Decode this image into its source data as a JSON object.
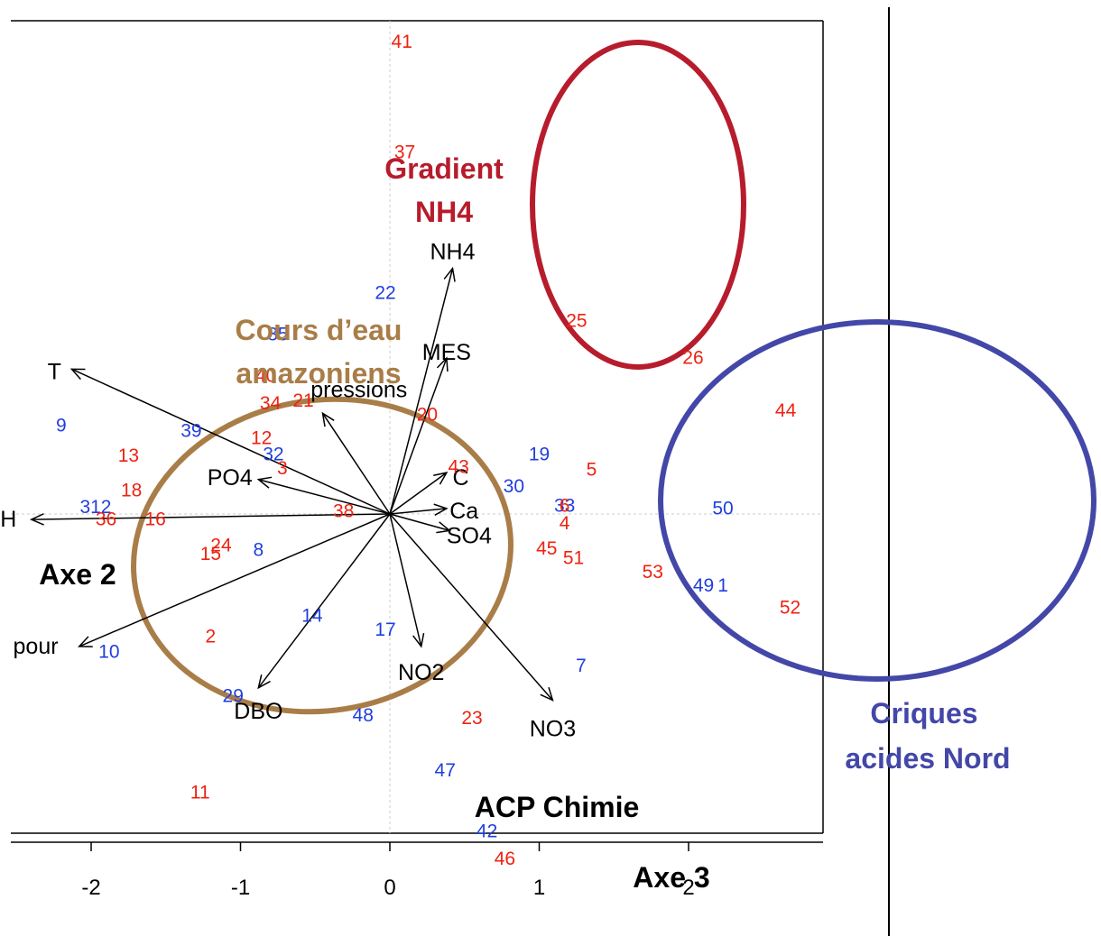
{
  "chart_data": {
    "type": "scatter",
    "title": "ACP Chimie",
    "xlabel": "Axe 3",
    "ylabel": "Axe 2",
    "xlim": [
      -2.55,
      2.9
    ],
    "ylim": [
      -2.15,
      3.6
    ],
    "x_ticks": [
      {
        "value": -2,
        "label": "-2"
      },
      {
        "value": -1,
        "label": "-1"
      },
      {
        "value": 0,
        "label": "0"
      },
      {
        "value": 1,
        "label": "1"
      },
      {
        "value": 2,
        "label": "2"
      }
    ],
    "grid": "dashed reference lines at x = 0 and y = 0",
    "colors": {
      "red": "#ee2211",
      "blue": "#1f3fdd",
      "arrow": "#000000"
    },
    "sites": [
      {
        "label": "41",
        "x": 0.08,
        "y": 3.42,
        "color": "red"
      },
      {
        "label": "37",
        "x": 0.1,
        "y": 2.62,
        "color": "red"
      },
      {
        "label": "22",
        "x": -0.03,
        "y": 1.6,
        "color": "blue"
      },
      {
        "label": "35",
        "x": -0.75,
        "y": 1.3,
        "color": "blue"
      },
      {
        "label": "25",
        "x": 1.25,
        "y": 1.4,
        "color": "red"
      },
      {
        "label": "26",
        "x": 2.03,
        "y": 1.13,
        "color": "red"
      },
      {
        "label": "40",
        "x": -0.83,
        "y": 1.0,
        "color": "red"
      },
      {
        "label": "34",
        "x": -0.8,
        "y": 0.8,
        "color": "red"
      },
      {
        "label": "21",
        "x": -0.58,
        "y": 0.82,
        "color": "red"
      },
      {
        "label": "20",
        "x": 0.25,
        "y": 0.72,
        "color": "red"
      },
      {
        "label": "44",
        "x": 2.65,
        "y": 0.75,
        "color": "red"
      },
      {
        "label": "9",
        "x": -2.2,
        "y": 0.64,
        "color": "blue"
      },
      {
        "label": "39",
        "x": -1.33,
        "y": 0.6,
        "color": "blue"
      },
      {
        "label": "12",
        "x": -0.86,
        "y": 0.55,
        "color": "red"
      },
      {
        "label": "13",
        "x": -1.75,
        "y": 0.42,
        "color": "red"
      },
      {
        "label": "32",
        "x": -0.78,
        "y": 0.43,
        "color": "blue"
      },
      {
        "label": "3",
        "x": -0.72,
        "y": 0.33,
        "color": "red"
      },
      {
        "label": "19",
        "x": 1.0,
        "y": 0.43,
        "color": "blue"
      },
      {
        "label": "5",
        "x": 1.35,
        "y": 0.32,
        "color": "red"
      },
      {
        "label": "43",
        "x": 0.46,
        "y": 0.34,
        "color": "red"
      },
      {
        "label": "30",
        "x": 0.83,
        "y": 0.2,
        "color": "blue"
      },
      {
        "label": "18",
        "x": -1.73,
        "y": 0.17,
        "color": "red"
      },
      {
        "label": "312",
        "x": -1.97,
        "y": 0.05,
        "color": "blue"
      },
      {
        "label": "36",
        "x": -1.9,
        "y": -0.04,
        "color": "red"
      },
      {
        "label": "16",
        "x": -1.57,
        "y": -0.04,
        "color": "red"
      },
      {
        "label": "38",
        "x": -0.31,
        "y": 0.02,
        "color": "red"
      },
      {
        "label": "33",
        "x": 1.17,
        "y": 0.06,
        "color": "blue"
      },
      {
        "label": "6",
        "x": 1.17,
        "y": 0.06,
        "color": "red"
      },
      {
        "label": "4",
        "x": 1.17,
        "y": -0.07,
        "color": "red"
      },
      {
        "label": "50",
        "x": 2.23,
        "y": 0.04,
        "color": "blue"
      },
      {
        "label": "24",
        "x": -1.13,
        "y": -0.23,
        "color": "red"
      },
      {
        "label": "15",
        "x": -1.2,
        "y": -0.29,
        "color": "red"
      },
      {
        "label": "8",
        "x": -0.88,
        "y": -0.26,
        "color": "blue"
      },
      {
        "label": "45",
        "x": 1.05,
        "y": -0.25,
        "color": "red"
      },
      {
        "label": "51",
        "x": 1.23,
        "y": -0.32,
        "color": "red"
      },
      {
        "label": "53",
        "x": 1.76,
        "y": -0.42,
        "color": "red"
      },
      {
        "label": "49",
        "x": 2.1,
        "y": -0.52,
        "color": "blue"
      },
      {
        "label": "1",
        "x": 2.23,
        "y": -0.52,
        "color": "blue"
      },
      {
        "label": "52",
        "x": 2.68,
        "y": -0.68,
        "color": "red"
      },
      {
        "label": "14",
        "x": -0.52,
        "y": -0.74,
        "color": "blue"
      },
      {
        "label": "17",
        "x": -0.03,
        "y": -0.84,
        "color": "blue"
      },
      {
        "label": "2",
        "x": -1.2,
        "y": -0.89,
        "color": "red"
      },
      {
        "label": "10",
        "x": -1.88,
        "y": -1.0,
        "color": "blue"
      },
      {
        "label": "7",
        "x": 1.28,
        "y": -1.1,
        "color": "blue"
      },
      {
        "label": "29",
        "x": -1.05,
        "y": -1.32,
        "color": "blue"
      },
      {
        "label": "48",
        "x": -0.18,
        "y": -1.46,
        "color": "blue"
      },
      {
        "label": "23",
        "x": 0.55,
        "y": -1.48,
        "color": "red"
      },
      {
        "label": "47",
        "x": 0.37,
        "y": -1.86,
        "color": "blue"
      },
      {
        "label": "11",
        "x": -1.27,
        "y": -2.02,
        "color": "red"
      },
      {
        "label": "42",
        "x": 0.65,
        "y": -2.3,
        "color": "blue"
      },
      {
        "label": "46",
        "x": 0.77,
        "y": -2.5,
        "color": "red"
      }
    ],
    "variables": [
      {
        "name": "NH4",
        "x": 0.42,
        "y": 1.78,
        "lx": 0.42,
        "ly": 1.9,
        "anchor": "middle"
      },
      {
        "name": "MES",
        "x": 0.38,
        "y": 1.13,
        "lx": 0.38,
        "ly": 1.17,
        "anchor": "middle"
      },
      {
        "name": "T",
        "x": -2.13,
        "y": 1.05,
        "lx": -2.2,
        "ly": 1.03,
        "anchor": "end"
      },
      {
        "name": "pressions",
        "x": -0.45,
        "y": 0.73,
        "lx": -0.53,
        "ly": 0.9,
        "anchor": "start"
      },
      {
        "name": "PO4",
        "x": -0.88,
        "y": 0.25,
        "lx": -0.92,
        "ly": 0.26,
        "anchor": "end"
      },
      {
        "name": "C",
        "x": 0.38,
        "y": 0.3,
        "lx": 0.42,
        "ly": 0.26,
        "anchor": "start"
      },
      {
        "name": "Ca",
        "x": 0.38,
        "y": 0.04,
        "lx": 0.4,
        "ly": 0.02,
        "anchor": "start"
      },
      {
        "name": "SO4",
        "x": 0.4,
        "y": -0.12,
        "lx": 0.38,
        "ly": -0.16,
        "anchor": "start"
      },
      {
        "name": "H",
        "x": -2.4,
        "y": -0.04,
        "lx": -2.5,
        "ly": -0.04,
        "anchor": "end"
      },
      {
        "name": "pour",
        "x": -2.08,
        "y": -0.96,
        "lx": -2.22,
        "ly": -0.96,
        "anchor": "end"
      },
      {
        "name": "NO2",
        "x": 0.21,
        "y": -0.96,
        "lx": 0.21,
        "ly": -1.15,
        "anchor": "middle"
      },
      {
        "name": "DBO",
        "x": -0.88,
        "y": -1.26,
        "lx": -0.88,
        "ly": -1.43,
        "anchor": "middle"
      },
      {
        "name": "NO3",
        "x": 1.09,
        "y": -1.35,
        "lx": 1.09,
        "ly": -1.56,
        "anchor": "middle"
      }
    ],
    "annotations": [
      {
        "text": [
          "Gradient",
          "NH4"
        ],
        "color": "#b71c2c"
      },
      {
        "text": [
          "Cours d’eau",
          "amazoniens"
        ],
        "color": "#a97d48"
      },
      {
        "text": [
          "Criques",
          "acides Nord"
        ],
        "color": "#4347a8"
      }
    ]
  }
}
